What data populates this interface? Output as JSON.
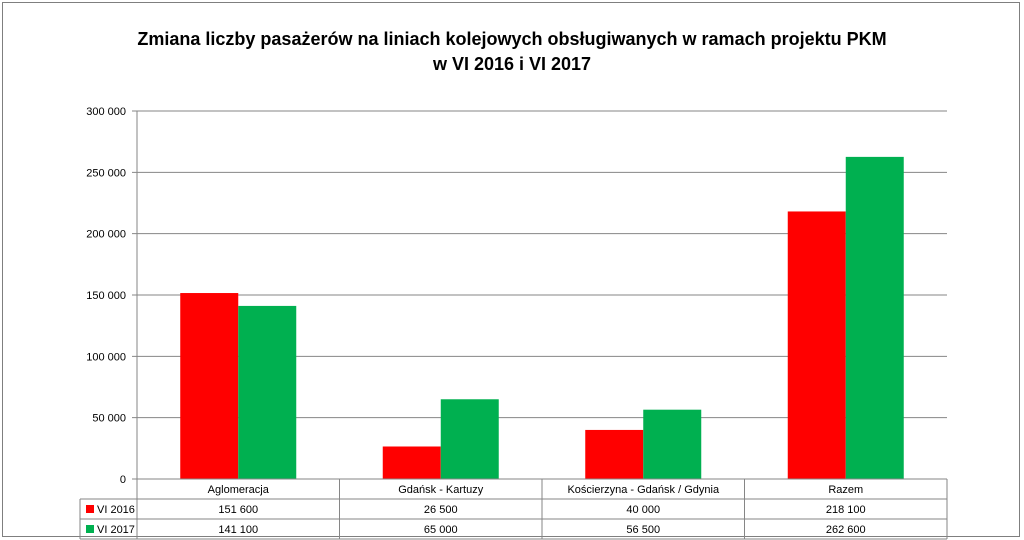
{
  "chart_data": {
    "type": "bar",
    "title": "Zmiana liczby pasażerów na liniach kolejowych obsługiwanych w ramach projektu PKM",
    "subtitle": "w VI 2016 i VI 2017",
    "categories": [
      "Aglomeracja",
      "Gdańsk - Kartuzy",
      "Kościerzyna - Gdańsk / Gdynia",
      "Razem"
    ],
    "series": [
      {
        "name": "VI 2016",
        "color": "#ff0000",
        "values": [
          151600,
          26500,
          40000,
          218100
        ],
        "labels": [
          "151 600",
          "26 500",
          "40 000",
          "218 100"
        ]
      },
      {
        "name": "VI 2017",
        "color": "#00b050",
        "values": [
          141100,
          65000,
          56500,
          262600
        ],
        "labels": [
          "141 100",
          "65 000",
          "56 500",
          "262 600"
        ]
      }
    ],
    "ylim": [
      0,
      300000
    ],
    "yticks": [
      0,
      50000,
      100000,
      150000,
      200000,
      250000,
      300000
    ],
    "ytick_labels": [
      "0",
      "50 000",
      "100 000",
      "150 000",
      "200 000",
      "250 000",
      "300 000"
    ],
    "grid": true,
    "legend": "data-table"
  }
}
